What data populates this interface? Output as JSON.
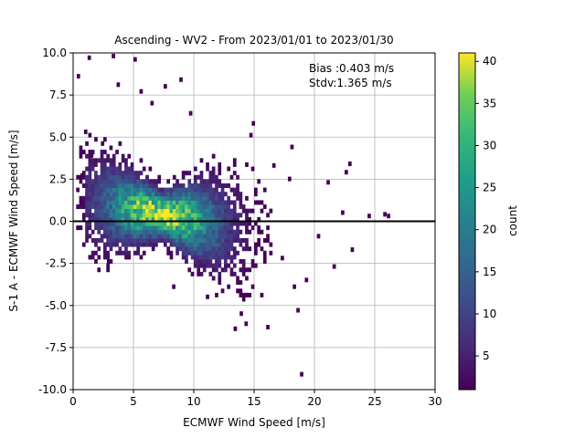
{
  "chart_data": {
    "type": "heatmap",
    "title": "Ascending - WV2 - From 2023/01/01 to 2023/01/30",
    "xlabel": "ECMWF Wind Speed [m/s]",
    "ylabel": "S-1 A - ECMWF Wind Speed [m/s]",
    "xlim": [
      0,
      30
    ],
    "ylim": [
      -10,
      10
    ],
    "x_ticks": [
      "0",
      "5",
      "10",
      "15",
      "20",
      "25",
      "30"
    ],
    "y_ticks": [
      "10.0",
      "7.5",
      "5.0",
      "2.5",
      "0.0",
      "-2.5",
      "-5.0",
      "-7.5",
      "-10.0"
    ],
    "grid": true,
    "reference_line_y": 0,
    "annotations": [
      "Bias :0.403 m/s",
      "Stdv:1.365 m/s"
    ],
    "colorbar": {
      "label": "count",
      "min": 1,
      "max": 41,
      "ticks": [
        "5",
        "10",
        "15",
        "20",
        "25",
        "30",
        "35",
        "40"
      ],
      "colormap": "viridis"
    },
    "density_model": {
      "peak_count": 41,
      "center_x": 7.2,
      "center_y": 0.3,
      "slope_y_per_x": -0.13,
      "sigma_along_x": 3.2,
      "sigma_across_y": 0.75
    },
    "outliers": [
      [
        0.3,
        8.5
      ],
      [
        1.2,
        9.6
      ],
      [
        3.2,
        9.7
      ],
      [
        5.0,
        9.5
      ],
      [
        3.6,
        8.0
      ],
      [
        5.5,
        7.6
      ],
      [
        7.5,
        7.9
      ],
      [
        8.8,
        8.3
      ],
      [
        6.4,
        6.9
      ],
      [
        9.6,
        6.3
      ],
      [
        14.8,
        5.7
      ],
      [
        14.6,
        5.0
      ],
      [
        18.0,
        4.3
      ],
      [
        22.8,
        3.3
      ],
      [
        22.5,
        2.8
      ],
      [
        22.2,
        0.4
      ],
      [
        24.4,
        0.2
      ],
      [
        25.7,
        0.3
      ],
      [
        23.0,
        -1.8
      ],
      [
        21.5,
        -2.8
      ],
      [
        19.2,
        -3.6
      ],
      [
        18.2,
        -4.0
      ],
      [
        15.5,
        -4.5
      ],
      [
        18.5,
        -5.4
      ],
      [
        13.8,
        -5.6
      ],
      [
        14.2,
        -6.2
      ],
      [
        16.0,
        -6.4
      ],
      [
        13.3,
        -6.5
      ],
      [
        11.0,
        -4.6
      ],
      [
        8.2,
        -4.0
      ],
      [
        2.8,
        -2.5
      ],
      [
        18.8,
        -9.2
      ],
      [
        20.2,
        -1.0
      ],
      [
        21.0,
        2.2
      ],
      [
        17.2,
        -2.3
      ],
      [
        16.5,
        3.2
      ],
      [
        17.8,
        2.4
      ],
      [
        1.4,
        3.8
      ],
      [
        2.3,
        4.5
      ],
      [
        0.6,
        2.6
      ],
      [
        0.9,
        5.2
      ],
      [
        26.0,
        0.2
      ]
    ],
    "colors": {
      "reference_line": "#000000",
      "grid": "#b0b0b0"
    }
  }
}
